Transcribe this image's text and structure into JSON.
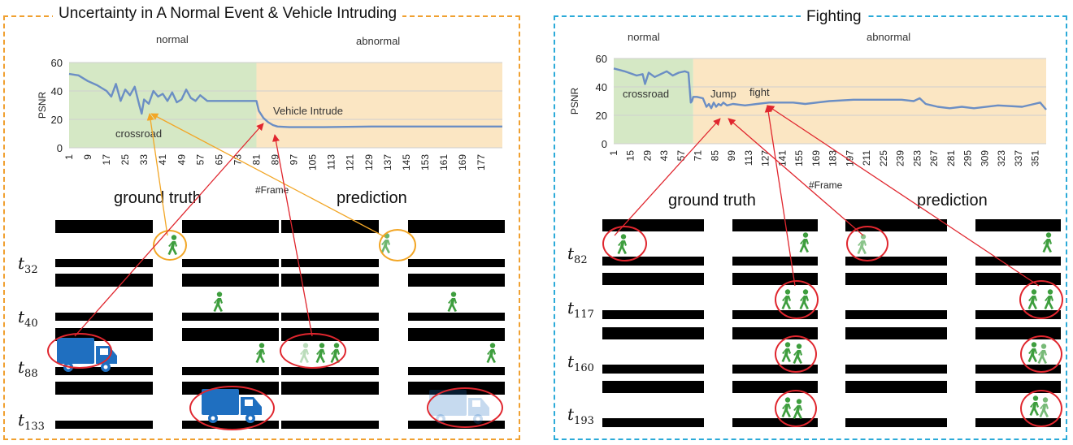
{
  "left_panel": {
    "title": "Uncertainty in A Normal Event & Vehicle Intruding",
    "segment_labels": [
      "normal",
      "abnormal"
    ],
    "annotations": [
      "crossroad",
      "Vehicle Intrude"
    ],
    "caption_gt": "ground truth",
    "caption_pred": "prediction",
    "rows": [
      {
        "t": "t",
        "sub": "32"
      },
      {
        "t": "t",
        "sub": "40"
      },
      {
        "t": "t",
        "sub": "88"
      },
      {
        "t": "t",
        "sub": "133"
      }
    ]
  },
  "right_panel": {
    "title": "Fighting",
    "segment_labels": [
      "normal",
      "abnormal"
    ],
    "annotations": [
      "crossroad",
      "Jump",
      "fight"
    ],
    "caption_gt": "ground truth",
    "caption_pred": "prediction",
    "rows": [
      {
        "t": "t",
        "sub": "82"
      },
      {
        "t": "t",
        "sub": "117"
      },
      {
        "t": "t",
        "sub": "160"
      },
      {
        "t": "t",
        "sub": "193"
      }
    ]
  },
  "colors": {
    "normal_bg": "#D5E8C5",
    "abnormal_bg": "#FBE6C3",
    "line": "#6B8EC4",
    "orange_dash": "#F0A030",
    "blue_dash": "#2BAAD8",
    "ring_orange": "#F2A626",
    "ring_red": "#E0262E",
    "pedestrian": "#3E9E3E",
    "truck": "#1F6FC0"
  },
  "icons": [
    "pedestrian-icon",
    "truck-icon"
  ],
  "chart_data": [
    {
      "type": "line",
      "title": "",
      "xlabel": "#Frame",
      "ylabel": "PSNR",
      "ylim": [
        0,
        60
      ],
      "yticks": [
        0,
        20,
        40,
        60
      ],
      "xticks": [
        1,
        9,
        17,
        25,
        33,
        41,
        49,
        57,
        65,
        73,
        81,
        89,
        97,
        105,
        113,
        121,
        129,
        137,
        145,
        153,
        161,
        169,
        177
      ],
      "grid": true,
      "regions": [
        {
          "label": "normal",
          "from": 1,
          "to": 81
        },
        {
          "label": "abnormal",
          "from": 81,
          "to": 186
        }
      ],
      "series": [
        {
          "name": "",
          "x": [
            1,
            5,
            9,
            13,
            17,
            19,
            21,
            23,
            25,
            27,
            29,
            31,
            32,
            33,
            35,
            37,
            39,
            41,
            43,
            45,
            47,
            49,
            51,
            53,
            55,
            57,
            60,
            65,
            70,
            75,
            80,
            81,
            82,
            84,
            86,
            88,
            90,
            95,
            100,
            110,
            130,
            150,
            170,
            186
          ],
          "y": [
            52,
            51,
            47,
            44,
            40,
            36,
            45,
            33,
            41,
            37,
            43,
            30,
            24,
            34,
            31,
            40,
            36,
            38,
            33,
            39,
            32,
            34,
            41,
            35,
            33,
            37,
            33,
            33,
            33,
            33,
            33,
            33,
            26,
            21,
            18,
            16,
            15,
            14.5,
            14.5,
            14.5,
            15,
            15,
            15,
            15
          ]
        }
      ]
    },
    {
      "type": "line",
      "title": "",
      "xlabel": "#Frame",
      "ylabel": "PSNR",
      "ylim": [
        0,
        60
      ],
      "yticks": [
        0,
        20,
        40,
        60
      ],
      "xticks": [
        1,
        15,
        29,
        43,
        57,
        71,
        85,
        99,
        113,
        127,
        141,
        155,
        169,
        183,
        197,
        211,
        225,
        239,
        253,
        267,
        281,
        295,
        309,
        323,
        337,
        351
      ],
      "grid": true,
      "regions": [
        {
          "label": "normal",
          "from": 1,
          "to": 67
        },
        {
          "label": "abnormal",
          "from": 67,
          "to": 360
        }
      ],
      "series": [
        {
          "name": "",
          "x": [
            1,
            10,
            20,
            25,
            27,
            30,
            35,
            40,
            45,
            50,
            55,
            60,
            63,
            65,
            66,
            67,
            70,
            75,
            78,
            80,
            82,
            84,
            86,
            88,
            90,
            92,
            95,
            100,
            110,
            120,
            130,
            140,
            150,
            160,
            180,
            200,
            220,
            240,
            250,
            255,
            260,
            270,
            280,
            290,
            300,
            320,
            340,
            355,
            360
          ],
          "y": [
            53,
            51,
            48,
            49,
            42,
            50,
            47,
            49,
            51,
            48,
            50,
            51,
            50,
            29,
            30,
            33,
            33,
            32,
            26,
            28,
            25,
            29,
            26,
            28,
            27,
            29,
            27,
            28,
            27,
            28,
            29,
            29,
            29,
            28,
            30,
            31,
            31,
            31,
            30,
            32,
            28,
            26,
            25,
            26,
            25,
            27,
            26,
            29,
            24
          ]
        }
      ]
    }
  ]
}
